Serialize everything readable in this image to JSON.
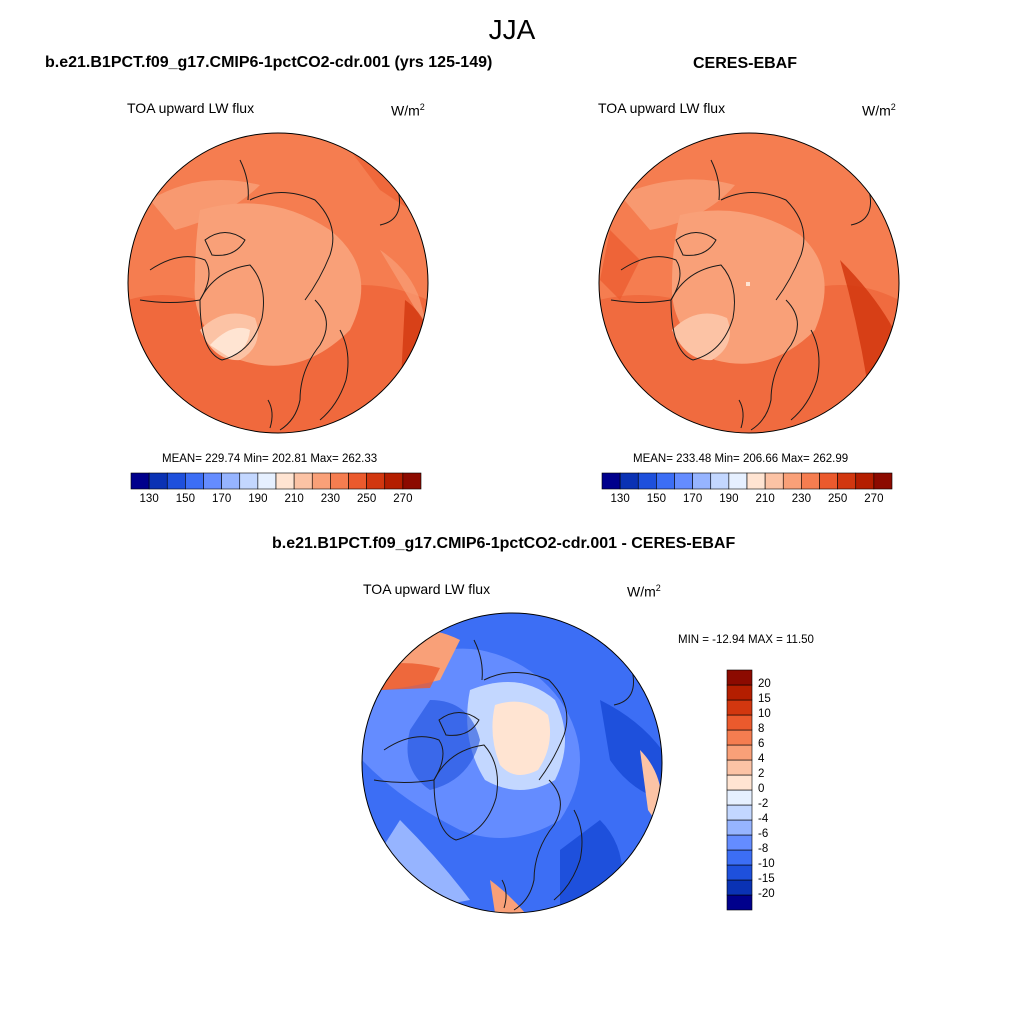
{
  "season": "JJA",
  "panels": {
    "model": {
      "title": "b.e21.B1PCT.f09_g17.CMIP6-1pctCO2-cdr.001 (yrs 125-149)",
      "variable": "TOA upward LW flux",
      "units_base": "W/m",
      "units_exp": "2",
      "stats": "MEAN= 229.74  Min= 202.81  Max= 262.33"
    },
    "obs": {
      "title": "CERES-EBAF",
      "variable": "TOA upward LW flux",
      "units_base": "W/m",
      "units_exp": "2",
      "stats": "MEAN= 233.48  Min= 206.66  Max= 262.99"
    },
    "diff": {
      "title": "b.e21.B1PCT.f09_g17.CMIP6-1pctCO2-cdr.001 - CERES-EBAF",
      "variable": "TOA upward LW flux",
      "units_base": "W/m",
      "units_exp": "2",
      "stats": "MIN = -12.94 MAX =  11.50"
    }
  },
  "chart_data": [
    {
      "type": "heatmap",
      "projection": "north polar stereographic",
      "title": "b.e21.B1PCT.f09_g17.CMIP6-1pctCO2-cdr.001 (yrs 125-149)",
      "variable": "TOA upward LW flux",
      "units": "W/m2",
      "mean": 229.74,
      "min": 202.81,
      "max": 262.33,
      "colorbar_orientation": "horizontal",
      "colorbar_levels": [
        130,
        140,
        150,
        160,
        170,
        180,
        190,
        200,
        210,
        220,
        230,
        240,
        250,
        260,
        270
      ],
      "colorbar_tick_labels": [
        "130",
        "150",
        "170",
        "190",
        "210",
        "230",
        "250",
        "270"
      ]
    },
    {
      "type": "heatmap",
      "projection": "north polar stereographic",
      "title": "CERES-EBAF",
      "variable": "TOA upward LW flux",
      "units": "W/m2",
      "mean": 233.48,
      "min": 206.66,
      "max": 262.99,
      "colorbar_orientation": "horizontal",
      "colorbar_levels": [
        130,
        140,
        150,
        160,
        170,
        180,
        190,
        200,
        210,
        220,
        230,
        240,
        250,
        260,
        270
      ],
      "colorbar_tick_labels": [
        "130",
        "150",
        "170",
        "190",
        "210",
        "230",
        "250",
        "270"
      ]
    },
    {
      "type": "heatmap",
      "projection": "north polar stereographic",
      "title": "b.e21.B1PCT.f09_g17.CMIP6-1pctCO2-cdr.001 - CERES-EBAF",
      "variable": "TOA upward LW flux",
      "units": "W/m2",
      "min": -12.94,
      "max": 11.5,
      "colorbar_orientation": "vertical",
      "colorbar_levels": [
        -20,
        -15,
        -10,
        -8,
        -6,
        -4,
        -2,
        0,
        2,
        4,
        6,
        8,
        10,
        15,
        20
      ],
      "colorbar_tick_labels": [
        "-20",
        "-15",
        "-10",
        "-8",
        "-6",
        "-4",
        "-2",
        "0",
        "2",
        "4",
        "6",
        "8",
        "10",
        "15",
        "20"
      ]
    }
  ],
  "colors": {
    "abs_bins": [
      "#00008c",
      "#0a32b4",
      "#1e50dc",
      "#3c6ef5",
      "#648cff",
      "#96b4ff",
      "#c3d7ff",
      "#e6f0ff",
      "#ffe4d2",
      "#fcc3a5",
      "#f9a078",
      "#f57d50",
      "#eb5a2d",
      "#d2370f",
      "#b41e00",
      "#8c0a00"
    ],
    "diff_bins": [
      "#00008c",
      "#0a32b4",
      "#1e50dc",
      "#3c6ef5",
      "#648cff",
      "#96b4ff",
      "#c3d7ff",
      "#e6f0ff",
      "#ffe4d2",
      "#fcc3a5",
      "#f9a078",
      "#f57d50",
      "#eb5a2d",
      "#d2370f",
      "#b41e00",
      "#8c0a00"
    ],
    "coastline": "#1a1a1a"
  }
}
